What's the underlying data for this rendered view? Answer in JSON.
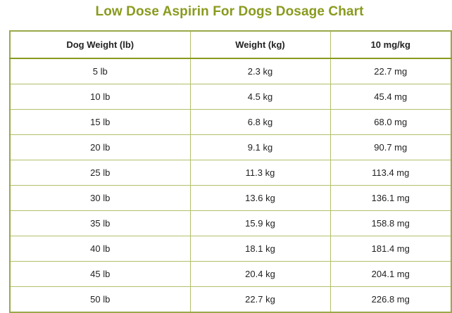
{
  "title": "Low Dose Aspirin For Dogs Dosage Chart",
  "accent_color": "#8a9a1e",
  "border_color": "#b2bf6a",
  "table": {
    "headers": [
      "Dog Weight (lb)",
      "Weight (kg)",
      "10 mg/kg"
    ],
    "rows": [
      [
        "5 lb",
        "2.3 kg",
        "22.7 mg"
      ],
      [
        "10 lb",
        "4.5 kg",
        "45.4 mg"
      ],
      [
        "15 lb",
        "6.8 kg",
        "68.0 mg"
      ],
      [
        "20 lb",
        "9.1 kg",
        "90.7 mg"
      ],
      [
        "25 lb",
        "11.3 kg",
        "113.4 mg"
      ],
      [
        "30 lb",
        "13.6 kg",
        "136.1 mg"
      ],
      [
        "35 lb",
        "15.9 kg",
        "158.8 mg"
      ],
      [
        "40 lb",
        "18.1 kg",
        "181.4 mg"
      ],
      [
        "45 lb",
        "20.4 kg",
        "204.1 mg"
      ],
      [
        "50 lb",
        "22.7 kg",
        "226.8 mg"
      ]
    ]
  }
}
